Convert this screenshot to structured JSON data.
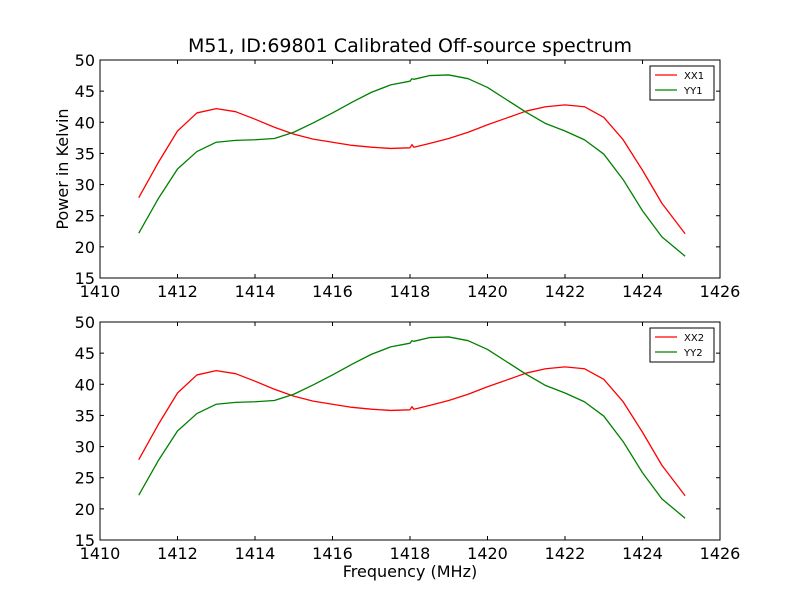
{
  "figure": {
    "title": "M51, ID:69801 Calibrated Off-source spectrum",
    "background": "#ffffff"
  },
  "chart_data": [
    {
      "type": "line",
      "title": "M51, ID:69801 Calibrated Off-source spectrum",
      "xlabel": "",
      "ylabel": "Power in Kelvin",
      "xlim": [
        1410,
        1426
      ],
      "ylim": [
        15,
        50
      ],
      "xticks": [
        1410,
        1412,
        1414,
        1416,
        1418,
        1420,
        1422,
        1424,
        1426
      ],
      "yticks": [
        15,
        20,
        25,
        30,
        35,
        40,
        45,
        50
      ],
      "grid": false,
      "legend": "top-right",
      "series": [
        {
          "name": "XX1",
          "color": "#ff0000",
          "x": [
            1411.0,
            1411.5,
            1412.0,
            1412.5,
            1413.0,
            1413.5,
            1414.0,
            1414.5,
            1415.0,
            1415.5,
            1416.0,
            1416.5,
            1417.0,
            1417.5,
            1418.0,
            1418.05,
            1418.1,
            1418.5,
            1419.0,
            1419.5,
            1420.0,
            1420.5,
            1421.0,
            1421.5,
            1422.0,
            1422.5,
            1423.0,
            1423.5,
            1424.0,
            1424.5,
            1425.1
          ],
          "values": [
            27.9,
            33.5,
            38.6,
            41.5,
            42.2,
            41.7,
            40.5,
            39.2,
            38.1,
            37.3,
            36.8,
            36.3,
            36.0,
            35.8,
            35.9,
            36.4,
            36.0,
            36.6,
            37.4,
            38.4,
            39.6,
            40.7,
            41.8,
            42.5,
            42.8,
            42.5,
            40.8,
            37.2,
            32.3,
            27.0,
            22.1
          ]
        },
        {
          "name": "YY1",
          "color": "#008000",
          "x": [
            1411.0,
            1411.5,
            1412.0,
            1412.5,
            1413.0,
            1413.5,
            1414.0,
            1414.5,
            1415.0,
            1415.5,
            1416.0,
            1416.5,
            1417.0,
            1417.5,
            1418.0,
            1418.05,
            1418.1,
            1418.5,
            1419.0,
            1419.5,
            1420.0,
            1420.5,
            1421.0,
            1421.5,
            1422.0,
            1422.5,
            1423.0,
            1423.5,
            1424.0,
            1424.5,
            1425.1
          ],
          "values": [
            22.2,
            27.7,
            32.5,
            35.3,
            36.8,
            37.1,
            37.2,
            37.4,
            38.4,
            39.9,
            41.5,
            43.2,
            44.8,
            46.0,
            46.6,
            47.0,
            46.9,
            47.5,
            47.6,
            47.0,
            45.6,
            43.6,
            41.6,
            39.8,
            38.6,
            37.2,
            34.9,
            30.8,
            25.8,
            21.6,
            18.5
          ]
        }
      ]
    },
    {
      "type": "line",
      "title": "",
      "xlabel": "Frequency (MHz)",
      "ylabel": "",
      "xlim": [
        1410,
        1426
      ],
      "ylim": [
        15,
        50
      ],
      "xticks": [
        1410,
        1412,
        1414,
        1416,
        1418,
        1420,
        1422,
        1424,
        1426
      ],
      "yticks": [
        15,
        20,
        25,
        30,
        35,
        40,
        45,
        50
      ],
      "grid": false,
      "legend": "top-right",
      "series": [
        {
          "name": "XX2",
          "color": "#ff0000",
          "x": [
            1411.0,
            1411.5,
            1412.0,
            1412.5,
            1413.0,
            1413.5,
            1414.0,
            1414.5,
            1415.0,
            1415.5,
            1416.0,
            1416.5,
            1417.0,
            1417.5,
            1418.0,
            1418.05,
            1418.1,
            1418.5,
            1419.0,
            1419.5,
            1420.0,
            1420.5,
            1421.0,
            1421.5,
            1422.0,
            1422.5,
            1423.0,
            1423.5,
            1424.0,
            1424.5,
            1425.1
          ],
          "values": [
            27.9,
            33.5,
            38.6,
            41.5,
            42.2,
            41.7,
            40.5,
            39.2,
            38.1,
            37.3,
            36.8,
            36.3,
            36.0,
            35.8,
            35.9,
            36.4,
            36.0,
            36.6,
            37.4,
            38.4,
            39.6,
            40.7,
            41.8,
            42.5,
            42.8,
            42.5,
            40.8,
            37.2,
            32.3,
            27.0,
            22.1
          ]
        },
        {
          "name": "YY2",
          "color": "#008000",
          "x": [
            1411.0,
            1411.5,
            1412.0,
            1412.5,
            1413.0,
            1413.5,
            1414.0,
            1414.5,
            1415.0,
            1415.5,
            1416.0,
            1416.5,
            1417.0,
            1417.5,
            1418.0,
            1418.05,
            1418.1,
            1418.5,
            1419.0,
            1419.5,
            1420.0,
            1420.5,
            1421.0,
            1421.5,
            1422.0,
            1422.5,
            1423.0,
            1423.5,
            1424.0,
            1424.5,
            1425.1
          ],
          "values": [
            22.2,
            27.7,
            32.5,
            35.3,
            36.8,
            37.1,
            37.2,
            37.4,
            38.4,
            39.9,
            41.5,
            43.2,
            44.8,
            46.0,
            46.6,
            47.0,
            46.9,
            47.5,
            47.6,
            47.0,
            45.6,
            43.6,
            41.6,
            39.8,
            38.6,
            37.2,
            34.9,
            30.8,
            25.8,
            21.6,
            18.5
          ]
        }
      ]
    }
  ]
}
